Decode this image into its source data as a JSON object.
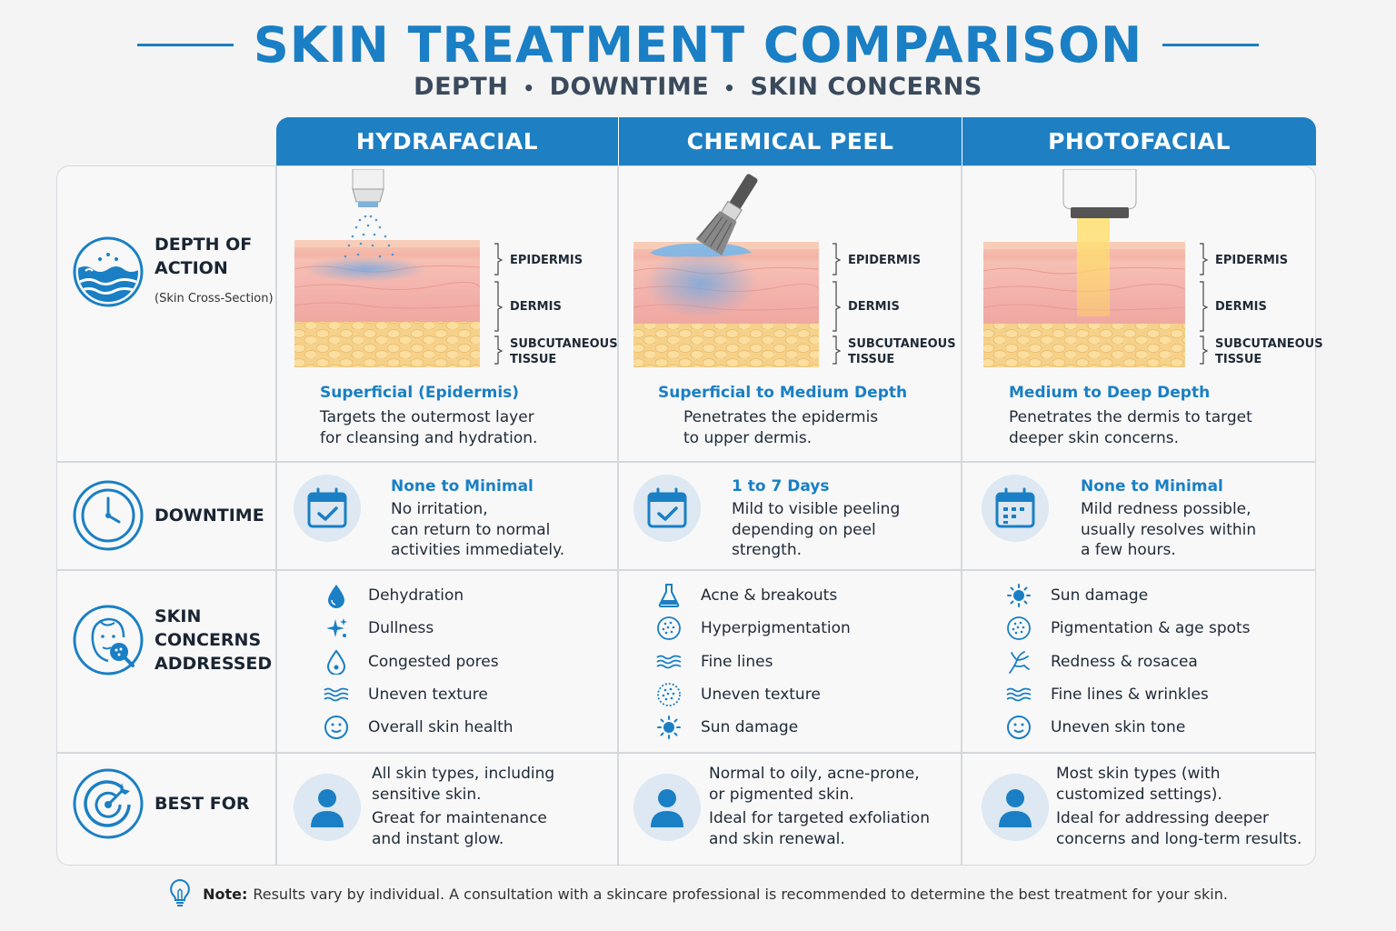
{
  "header": {
    "title": "SKIN TREATMENT COMPARISON",
    "subtitle_items": [
      "DEPTH",
      "DOWNTIME",
      "SKIN CONCERNS"
    ],
    "subtitle_separator": "•"
  },
  "columns": [
    "HYDRAFACIAL",
    "CHEMICAL PEEL",
    "PHOTOFACIAL"
  ],
  "rows": {
    "depth": {
      "label_line1": "DEPTH OF",
      "label_line2": "ACTION",
      "sublabel": "(Skin Cross-Section)",
      "icon": "skin-waves-icon"
    },
    "downtime": {
      "label": "DOWNTIME",
      "icon": "clock-icon"
    },
    "concerns": {
      "label_line1": "SKIN",
      "label_line2": "CONCERNS",
      "label_line3": "ADDRESSED",
      "icon": "face-magnifier-icon"
    },
    "best_for": {
      "label": "BEST FOR",
      "icon": "target-icon"
    }
  },
  "layers": {
    "epidermis": "EPIDERMIS",
    "dermis": "DERMIS",
    "subcutaneous_1": "SUBCUTANEOUS",
    "subcutaneous_2": "TISSUE"
  },
  "hydrafacial": {
    "depth_head": "Superficial (Epidermis)",
    "depth_line1": "Targets the outermost layer",
    "depth_line2": "for cleansing and hydration.",
    "downtime_head": "None to Minimal",
    "downtime_line1": "No irritation,",
    "downtime_line2": "can return to normal",
    "downtime_line3": "activities immediately.",
    "concerns": [
      {
        "icon": "droplet-icon",
        "text": "Dehydration"
      },
      {
        "icon": "sparkle-icon",
        "text": "Dullness"
      },
      {
        "icon": "drop-outline-icon",
        "text": "Congested pores"
      },
      {
        "icon": "waves-icon",
        "text": "Uneven texture"
      },
      {
        "icon": "smiley-icon",
        "text": "Overall skin health"
      }
    ],
    "best_line1": "All skin types, including",
    "best_line2": "sensitive skin.",
    "best_line3": "Great for maintenance",
    "best_line4": "and instant glow."
  },
  "chemical_peel": {
    "depth_head": "Superficial to Medium Depth",
    "depth_line1": "Penetrates the epidermis",
    "depth_line2": "to upper dermis.",
    "downtime_head": "1 to 7 Days",
    "downtime_line1": "Mild to visible peeling",
    "downtime_line2": "depending on peel",
    "downtime_line3": "strength.",
    "concerns": [
      {
        "icon": "flask-icon",
        "text": "Acne & breakouts"
      },
      {
        "icon": "dots-circle-icon",
        "text": "Hyperpigmentation"
      },
      {
        "icon": "waves-icon",
        "text": "Fine lines"
      },
      {
        "icon": "dots-circle-icon",
        "text": "Uneven texture"
      },
      {
        "icon": "sun-icon",
        "text": "Sun damage"
      }
    ],
    "best_line1": "Normal to oily, acne-prone,",
    "best_line2": "or pigmented skin.",
    "best_line3": "Ideal for targeted exfoliation",
    "best_line4": "and skin renewal."
  },
  "photofacial": {
    "depth_head": "Medium to Deep Depth",
    "depth_line1": "Penetrates the dermis to target",
    "depth_line2": "deeper skin concerns.",
    "downtime_head": "None to Minimal",
    "downtime_line1": "Mild redness possible,",
    "downtime_line2": "usually resolves within",
    "downtime_line3": "a few hours.",
    "concerns": [
      {
        "icon": "sun-icon",
        "text": "Sun damage"
      },
      {
        "icon": "dots-circle-icon",
        "text": "Pigmentation & age spots"
      },
      {
        "icon": "capillary-icon",
        "text": "Redness & rosacea"
      },
      {
        "icon": "waves-icon",
        "text": "Fine lines & wrinkles"
      },
      {
        "icon": "smiley-icon",
        "text": "Uneven skin tone"
      }
    ],
    "best_line1": "Most skin types (with",
    "best_line2": "customized settings).",
    "best_line3": "Ideal for addressing deeper",
    "best_line4": "concerns and long-term results."
  },
  "note": {
    "label": "Note:",
    "text": "Results vary by individual. A consultation with a skincare professional is recommended to determine the best treatment for your skin."
  },
  "colors": {
    "accent": "#1a7fc4",
    "header_bg": "#1e7fc3",
    "icon_bg": "#dde8f2"
  }
}
